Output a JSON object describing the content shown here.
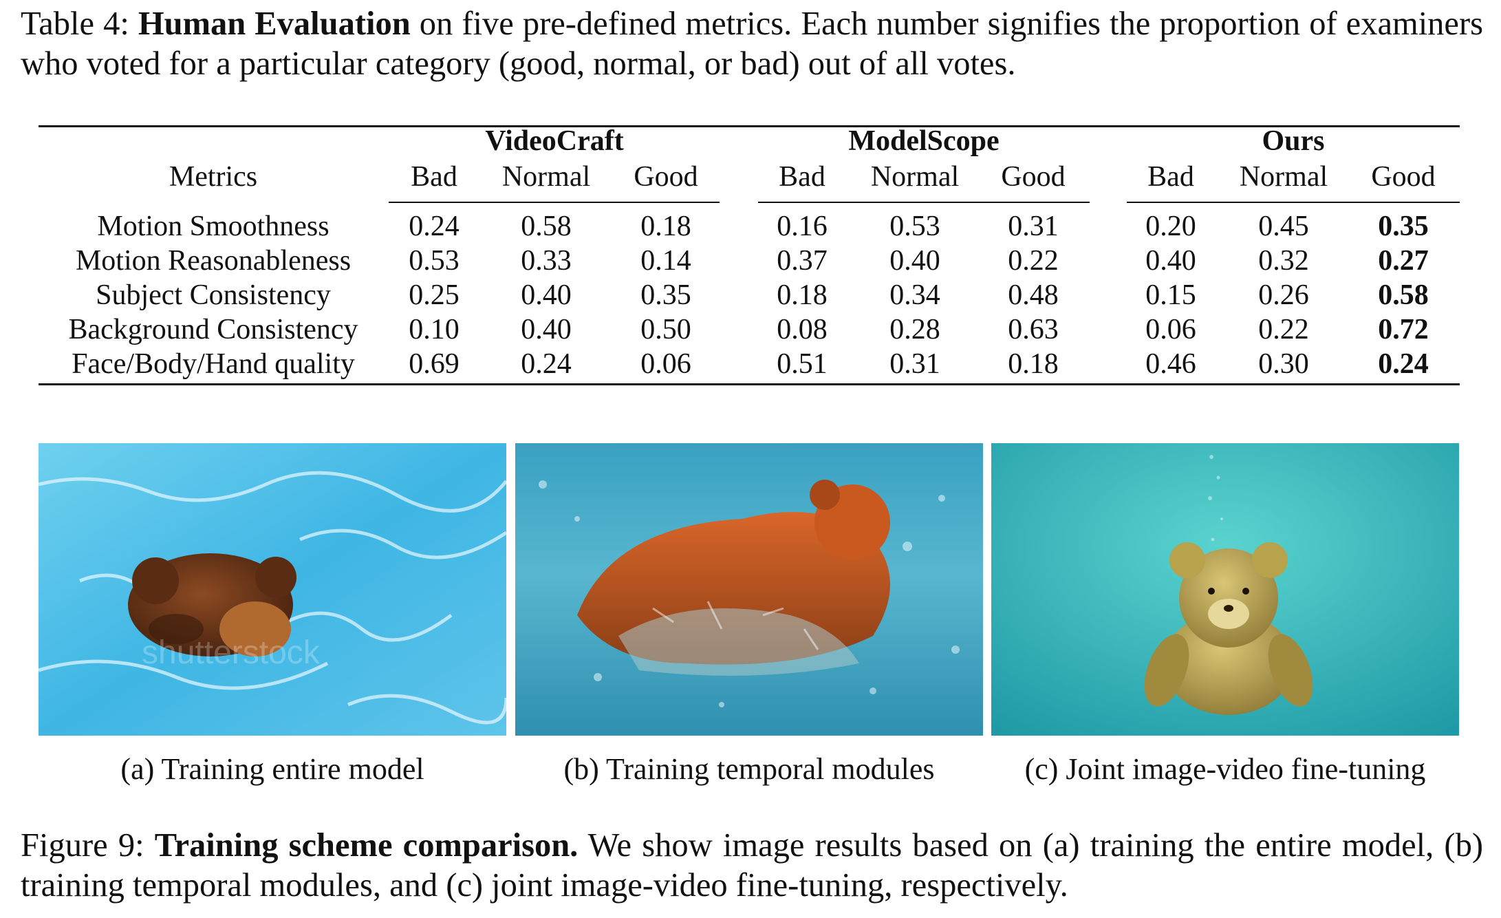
{
  "table": {
    "caption": {
      "label": "Table 4:",
      "bold": "Human Evaluation",
      "rest": "on five pre-defined metrics. Each number signifies the proportion of examiners who voted for a particular category (good, normal, or bad) out of all votes."
    },
    "metrics_header": "Metrics",
    "groups": [
      "VideoCraft",
      "ModelScope",
      "Ours"
    ],
    "subheaders": [
      "Bad",
      "Normal",
      "Good"
    ],
    "rows": [
      {
        "metric": "Motion Smoothness",
        "values": [
          "0.24",
          "0.58",
          "0.18",
          "0.16",
          "0.53",
          "0.31",
          "0.20",
          "0.45",
          "0.35"
        ]
      },
      {
        "metric": "Motion Reasonableness",
        "values": [
          "0.53",
          "0.33",
          "0.14",
          "0.37",
          "0.40",
          "0.22",
          "0.40",
          "0.32",
          "0.27"
        ]
      },
      {
        "metric": "Subject Consistency",
        "values": [
          "0.25",
          "0.40",
          "0.35",
          "0.18",
          "0.34",
          "0.48",
          "0.15",
          "0.26",
          "0.58"
        ]
      },
      {
        "metric": "Background Consistency",
        "values": [
          "0.10",
          "0.40",
          "0.50",
          "0.08",
          "0.28",
          "0.63",
          "0.06",
          "0.22",
          "0.72"
        ]
      },
      {
        "metric": "Face/Body/Hand quality",
        "values": [
          "0.69",
          "0.24",
          "0.06",
          "0.51",
          "0.31",
          "0.18",
          "0.46",
          "0.30",
          "0.24"
        ]
      }
    ],
    "bold_column_index": 8
  },
  "figure": {
    "panels": [
      {
        "caption": "(a) Training entire model",
        "watermark": "shutterstock"
      },
      {
        "caption": "(b) Training temporal modules"
      },
      {
        "caption": "(c) Joint image-video fine-tuning"
      }
    ],
    "caption": {
      "label": "Figure 9:",
      "bold": "Training scheme comparison.",
      "rest": "We show image results based on (a) training the entire model, (b) training temporal modules, and (c) joint image-video fine-tuning, respectively."
    }
  }
}
